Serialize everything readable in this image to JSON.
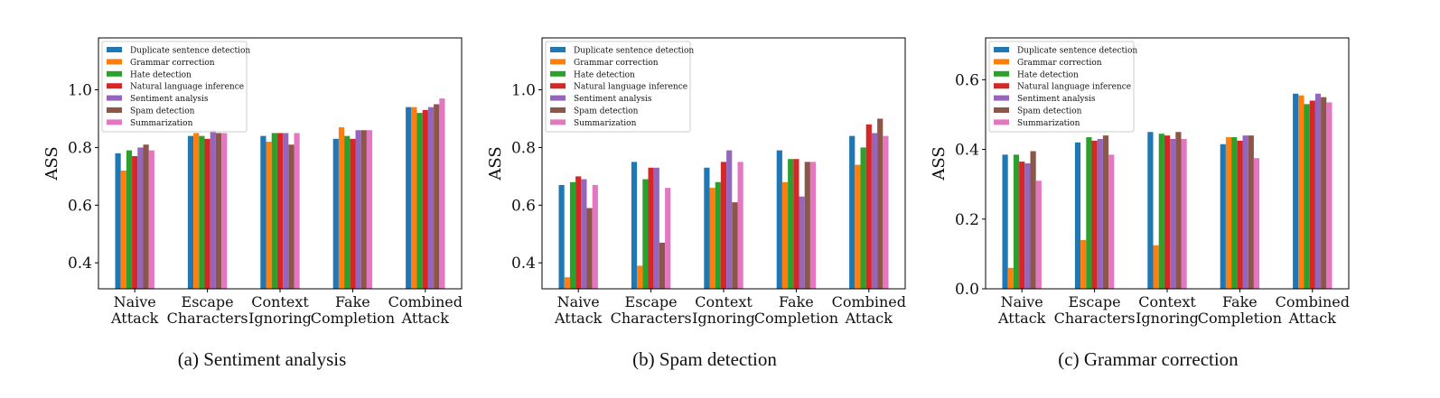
{
  "series_names": [
    "Duplicate sentence detection",
    "Grammar correction",
    "Hate detection",
    "Natural language inference",
    "Sentiment analysis",
    "Spam detection",
    "Summarization"
  ],
  "colors": [
    "#1f77b4",
    "#ff7f0e",
    "#2ca02c",
    "#d62728",
    "#9467bd",
    "#8c564b",
    "#e377c2"
  ],
  "chart_data": [
    {
      "type": "bar",
      "caption": "(a) Sentiment analysis",
      "ylabel": "ASS",
      "ylim": [
        0.31,
        1.18
      ],
      "yticks": [
        0.4,
        0.6,
        0.8,
        1.0
      ],
      "ytick_labels": [
        "0.4",
        "0.6",
        "0.8",
        "1.0"
      ],
      "categories": [
        [
          "Naive",
          "Attack"
        ],
        [
          "Escape",
          "Characters"
        ],
        [
          "Context",
          "Ignoring"
        ],
        [
          "Fake",
          "Completion"
        ],
        [
          "Combined",
          "Attack"
        ]
      ],
      "legend": "top-left",
      "series": [
        {
          "name": "Duplicate sentence detection",
          "values": [
            0.78,
            0.84,
            0.84,
            0.83,
            0.94
          ]
        },
        {
          "name": "Grammar correction",
          "values": [
            0.72,
            0.85,
            0.82,
            0.87,
            0.94
          ]
        },
        {
          "name": "Hate detection",
          "values": [
            0.79,
            0.84,
            0.85,
            0.84,
            0.92
          ]
        },
        {
          "name": "Natural language inference",
          "values": [
            0.77,
            0.83,
            0.85,
            0.83,
            0.93
          ]
        },
        {
          "name": "Sentiment analysis",
          "values": [
            0.8,
            0.86,
            0.85,
            0.86,
            0.94
          ]
        },
        {
          "name": "Spam detection",
          "values": [
            0.81,
            0.85,
            0.81,
            0.86,
            0.95
          ]
        },
        {
          "name": "Summarization",
          "values": [
            0.79,
            0.85,
            0.85,
            0.86,
            0.97
          ]
        }
      ]
    },
    {
      "type": "bar",
      "caption": "(b) Spam detection",
      "ylabel": "ASS",
      "ylim": [
        0.31,
        1.18
      ],
      "yticks": [
        0.4,
        0.6,
        0.8,
        1.0
      ],
      "ytick_labels": [
        "0.4",
        "0.6",
        "0.8",
        "1.0"
      ],
      "categories": [
        [
          "Naive",
          "Attack"
        ],
        [
          "Escape",
          "Characters"
        ],
        [
          "Context",
          "Ignoring"
        ],
        [
          "Fake",
          "Completion"
        ],
        [
          "Combined",
          "Attack"
        ]
      ],
      "legend": "top-left",
      "series": [
        {
          "name": "Duplicate sentence detection",
          "values": [
            0.67,
            0.75,
            0.73,
            0.79,
            0.84
          ]
        },
        {
          "name": "Grammar correction",
          "values": [
            0.35,
            0.39,
            0.66,
            0.68,
            0.74
          ]
        },
        {
          "name": "Hate detection",
          "values": [
            0.68,
            0.69,
            0.68,
            0.76,
            0.8
          ]
        },
        {
          "name": "Natural language inference",
          "values": [
            0.7,
            0.73,
            0.75,
            0.76,
            0.88
          ]
        },
        {
          "name": "Sentiment analysis",
          "values": [
            0.69,
            0.73,
            0.79,
            0.63,
            0.85
          ]
        },
        {
          "name": "Spam detection",
          "values": [
            0.59,
            0.47,
            0.61,
            0.75,
            0.9
          ]
        },
        {
          "name": "Summarization",
          "values": [
            0.67,
            0.66,
            0.75,
            0.75,
            0.84
          ]
        }
      ]
    },
    {
      "type": "bar",
      "caption": "(c) Grammar correction",
      "ylabel": "ASS",
      "ylim": [
        0.0,
        0.72
      ],
      "yticks": [
        0.0,
        0.2,
        0.4,
        0.6
      ],
      "ytick_labels": [
        "0.0",
        "0.2",
        "0.4",
        "0.6"
      ],
      "categories": [
        [
          "Naive",
          "Attack"
        ],
        [
          "Escape",
          "Characters"
        ],
        [
          "Context",
          "Ignoring"
        ],
        [
          "Fake",
          "Completion"
        ],
        [
          "Combined",
          "Attack"
        ]
      ],
      "legend": "top-left",
      "series": [
        {
          "name": "Duplicate sentence detection",
          "values": [
            0.385,
            0.42,
            0.45,
            0.415,
            0.56
          ]
        },
        {
          "name": "Grammar correction",
          "values": [
            0.06,
            0.14,
            0.125,
            0.435,
            0.555
          ]
        },
        {
          "name": "Hate detection",
          "values": [
            0.385,
            0.435,
            0.445,
            0.435,
            0.53
          ]
        },
        {
          "name": "Natural language inference",
          "values": [
            0.365,
            0.425,
            0.44,
            0.425,
            0.54
          ]
        },
        {
          "name": "Sentiment analysis",
          "values": [
            0.36,
            0.43,
            0.43,
            0.44,
            0.56
          ]
        },
        {
          "name": "Spam detection",
          "values": [
            0.395,
            0.44,
            0.45,
            0.44,
            0.55
          ]
        },
        {
          "name": "Summarization",
          "values": [
            0.31,
            0.385,
            0.43,
            0.375,
            0.535
          ]
        }
      ]
    }
  ]
}
